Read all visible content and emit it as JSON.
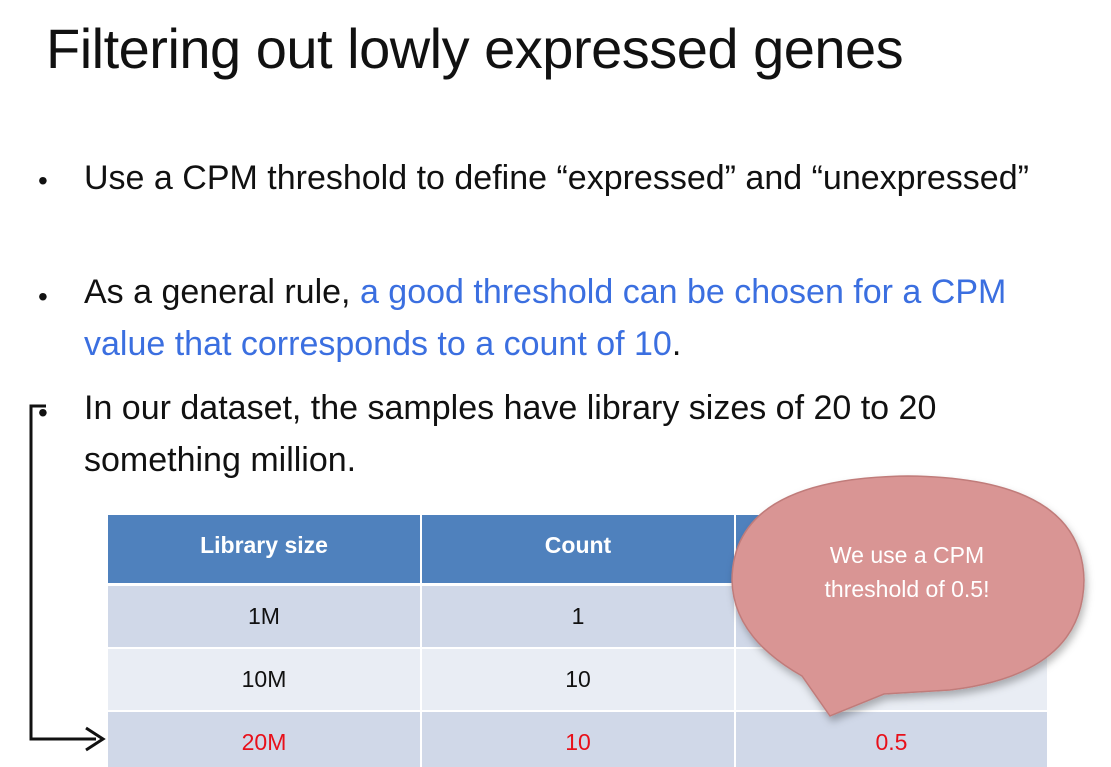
{
  "slide": {
    "title": "Filtering out lowly expressed genes",
    "bullets": [
      {
        "marker": "•",
        "text": "Use a CPM threshold to define “expressed” and “unexpressed”"
      },
      {
        "marker": "•",
        "text_before": "As a general rule, ",
        "text_highlight": "a good threshold can be chosen for a CPM value that corresponds to a count of 10",
        "text_after": "."
      },
      {
        "marker": "•",
        "text": "In our dataset, the samples have library sizes of 20 to 20 something million."
      }
    ],
    "highlight_color": "#3b6fe0"
  },
  "table": {
    "headers": [
      "Library size",
      "Count",
      ""
    ],
    "rows": [
      [
        "1M",
        "1",
        ""
      ],
      [
        "10M",
        "10",
        ""
      ],
      [
        "20M",
        "10",
        "0.5"
      ]
    ],
    "header_color": "#4f81bd",
    "emphasis_color": "#e8101a"
  },
  "callout": {
    "text": "We use a CPM threshold of 0.5!",
    "fill_color": "#d99594"
  }
}
